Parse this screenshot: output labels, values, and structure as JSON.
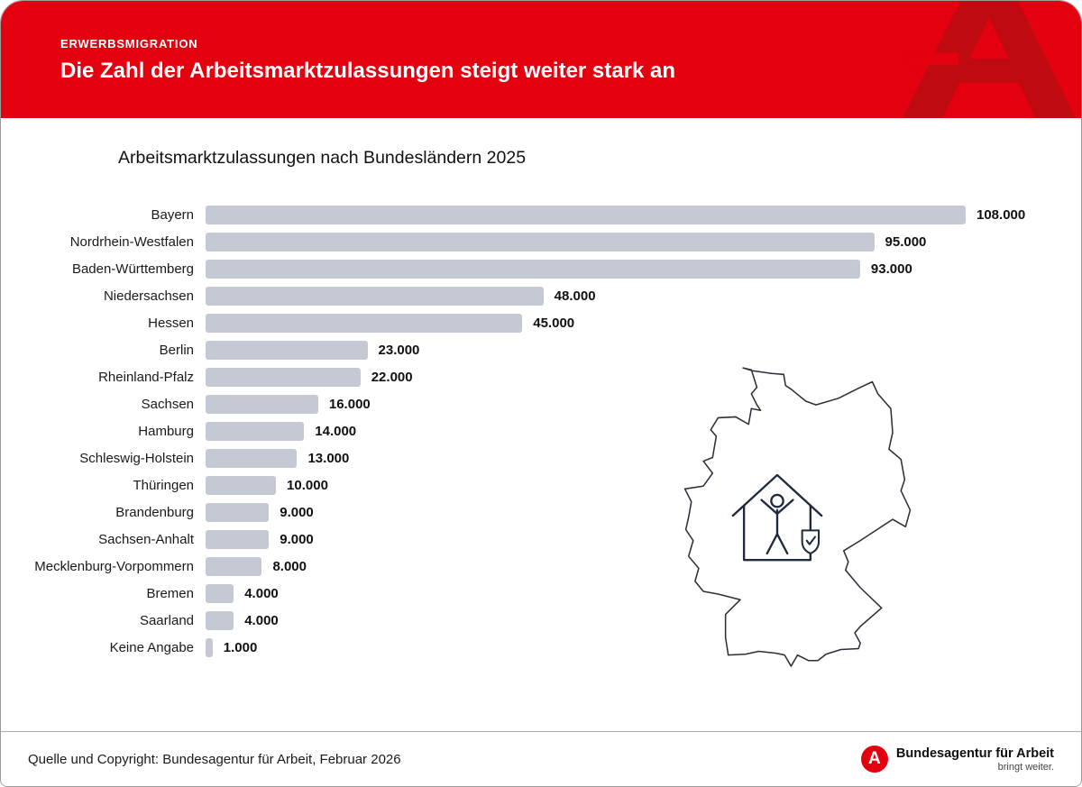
{
  "header": {
    "kicker": "ERWERBSMIGRATION",
    "title": "Die Zahl der Arbeitsmarktzulassungen steigt weiter stark an",
    "logo_glyph": "A"
  },
  "chart_data": {
    "type": "bar",
    "orientation": "horizontal",
    "title": "Arbeitsmarktzulassungen nach Bundesländern 2025",
    "categories": [
      "Bayern",
      "Nordrhein-Westfalen",
      "Baden-Württemberg",
      "Niedersachsen",
      "Hessen",
      "Berlin",
      "Rheinland-Pfalz",
      "Sachsen",
      "Hamburg",
      "Schleswig-Holstein",
      "Thüringen",
      "Brandenburg",
      "Sachsen-Anhalt",
      "Mecklenburg-Vorpommern",
      "Bremen",
      "Saarland",
      "Keine Angabe"
    ],
    "values": [
      108000,
      95000,
      93000,
      48000,
      45000,
      23000,
      22000,
      16000,
      14000,
      13000,
      10000,
      9000,
      9000,
      8000,
      4000,
      4000,
      1000
    ],
    "value_labels": [
      "108.000",
      "95.000",
      "93.000",
      "48.000",
      "45.000",
      "23.000",
      "22.000",
      "16.000",
      "14.000",
      "13.000",
      "10.000",
      "9.000",
      "9.000",
      "8.000",
      "4.000",
      "4.000",
      "1.000"
    ],
    "xlim": [
      0,
      108000
    ],
    "xlabel": "",
    "ylabel": "",
    "grid": false,
    "legend": false,
    "bar_color": "#c5c9d3"
  },
  "map": {
    "outline": "germany-outline",
    "icon": "house-family-shield-icon"
  },
  "colors": {
    "banner_red": "#e3000f",
    "banner_logo_red": "#bf0a12",
    "bar_gray": "#c5c9d3",
    "map_stroke": "#2b2f3a"
  },
  "footer": {
    "source": "Quelle und Copyright: Bundesagentur für Arbeit, Februar 2026",
    "logo_glyph": "A",
    "logo_text": "Bundesagentur für Arbeit",
    "logo_tagline": "bringt weiter."
  }
}
